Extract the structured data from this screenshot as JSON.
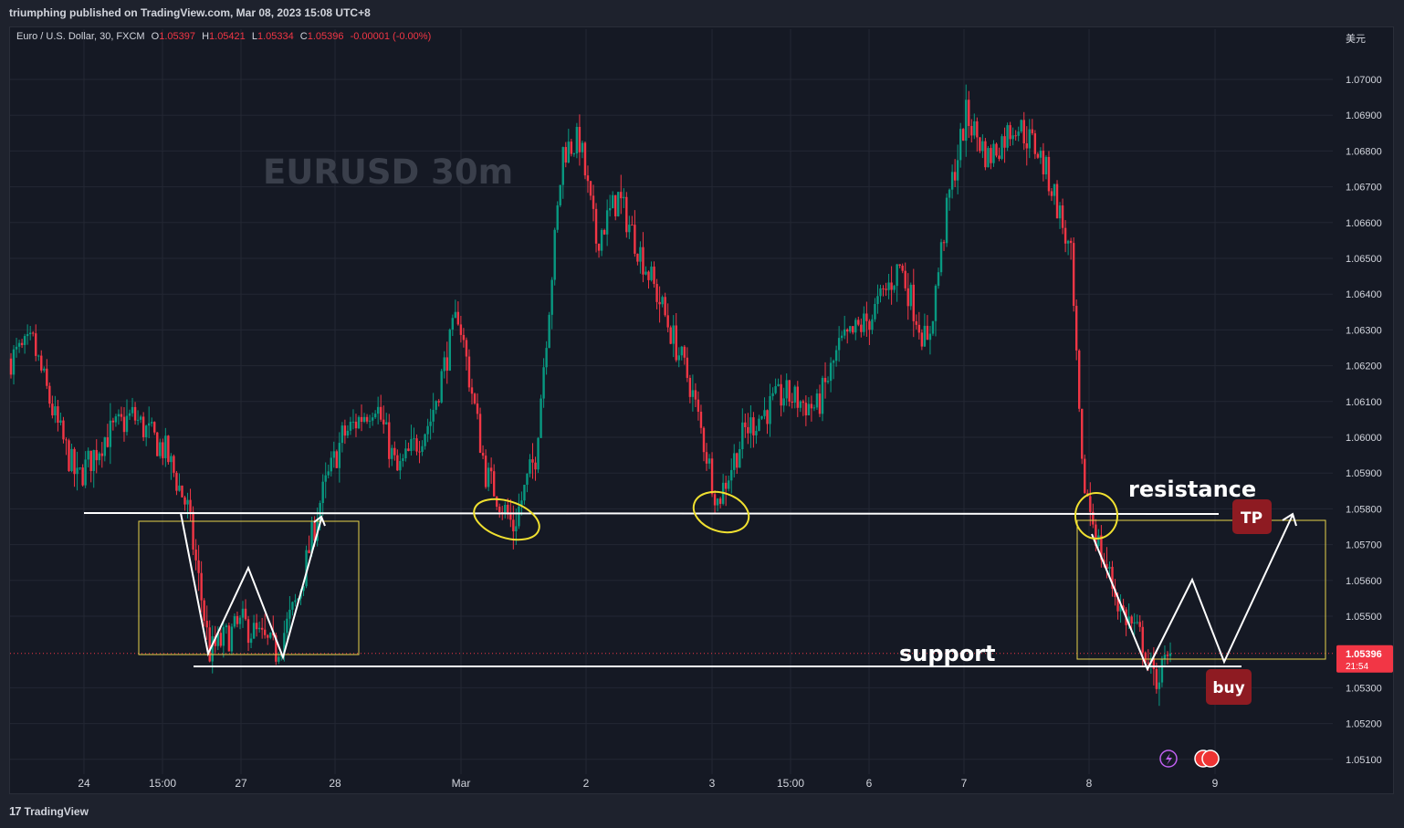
{
  "publish_bar": "triumphing published on TradingView.com, Mar 08, 2023 15:08 UTC+8",
  "legend": {
    "symbol": "Euro / U.S. Dollar, 30, FXCM",
    "o_label": "O",
    "o": "1.05397",
    "h_label": "H",
    "h": "1.05421",
    "l_label": "L",
    "l": "1.05334",
    "c_label": "C",
    "c": "1.05396",
    "change": "-0.00001 (-0.00%)"
  },
  "currency": "美元",
  "footer": {
    "logo": "17",
    "label": "TradingView"
  },
  "colors": {
    "up": "#089981",
    "down": "#f23645",
    "background": "#151924",
    "annotation_box": "#e6d34a",
    "circle": "#f0e030",
    "badge": "#8e1b22"
  },
  "chart_data": {
    "type": "candlestick",
    "title": "EURUSD  30m",
    "ylim": [
      1.0505,
      1.0713
    ],
    "y_ticks": [
      "1.07000",
      "1.06900",
      "1.06800",
      "1.06700",
      "1.06600",
      "1.06500",
      "1.06400",
      "1.06300",
      "1.06200",
      "1.06100",
      "1.06000",
      "1.05900",
      "1.05800",
      "1.05700",
      "1.05600",
      "1.05500",
      "1.05300",
      "1.05200",
      "1.05100"
    ],
    "x_ticks": [
      "24",
      "15:00",
      "27",
      "28",
      "Mar",
      "2",
      "3",
      "15:00",
      "6",
      "7",
      "8",
      "9"
    ],
    "last_price": {
      "value": "1.05396",
      "countdown": "21:54"
    },
    "path_anchors": [
      {
        "i": 0,
        "p": 1.0622
      },
      {
        "i": 8,
        "p": 1.0626
      },
      {
        "i": 16,
        "p": 1.0605
      },
      {
        "i": 24,
        "p": 1.0588
      },
      {
        "i": 34,
        "p": 1.06
      },
      {
        "i": 44,
        "p": 1.0606
      },
      {
        "i": 56,
        "p": 1.0596
      },
      {
        "i": 64,
        "p": 1.058
      },
      {
        "i": 72,
        "p": 1.054
      },
      {
        "i": 84,
        "p": 1.0548
      },
      {
        "i": 96,
        "p": 1.054
      },
      {
        "i": 104,
        "p": 1.0555
      },
      {
        "i": 112,
        "p": 1.0582
      },
      {
        "i": 120,
        "p": 1.06
      },
      {
        "i": 132,
        "p": 1.061
      },
      {
        "i": 140,
        "p": 1.059
      },
      {
        "i": 152,
        "p": 1.0605
      },
      {
        "i": 162,
        "p": 1.0635
      },
      {
        "i": 172,
        "p": 1.059
      },
      {
        "i": 182,
        "p": 1.0575
      },
      {
        "i": 190,
        "p": 1.0595
      },
      {
        "i": 200,
        "p": 1.068
      },
      {
        "i": 206,
        "p": 1.0683
      },
      {
        "i": 212,
        "p": 1.0655
      },
      {
        "i": 220,
        "p": 1.0667
      },
      {
        "i": 234,
        "p": 1.064
      },
      {
        "i": 246,
        "p": 1.0615
      },
      {
        "i": 256,
        "p": 1.0582
      },
      {
        "i": 266,
        "p": 1.0602
      },
      {
        "i": 280,
        "p": 1.0612
      },
      {
        "i": 292,
        "p": 1.0608
      },
      {
        "i": 300,
        "p": 1.0625
      },
      {
        "i": 312,
        "p": 1.0634
      },
      {
        "i": 322,
        "p": 1.0648
      },
      {
        "i": 332,
        "p": 1.0625
      },
      {
        "i": 340,
        "p": 1.0668
      },
      {
        "i": 346,
        "p": 1.069
      },
      {
        "i": 354,
        "p": 1.0678
      },
      {
        "i": 364,
        "p": 1.0688
      },
      {
        "i": 372,
        "p": 1.068
      },
      {
        "i": 378,
        "p": 1.0668
      },
      {
        "i": 384,
        "p": 1.065
      },
      {
        "i": 388,
        "p": 1.059
      },
      {
        "i": 394,
        "p": 1.057
      },
      {
        "i": 402,
        "p": 1.0552
      },
      {
        "i": 410,
        "p": 1.0543
      },
      {
        "i": 414,
        "p": 1.0532
      },
      {
        "i": 420,
        "p": 1.0538
      }
    ],
    "levels": {
      "resistance": 1.0579,
      "support": 1.0536
    },
    "annotations": {
      "resistance_label": "resistance",
      "support_label": "support",
      "tp_label": "TP",
      "buy_label": "buy"
    }
  }
}
